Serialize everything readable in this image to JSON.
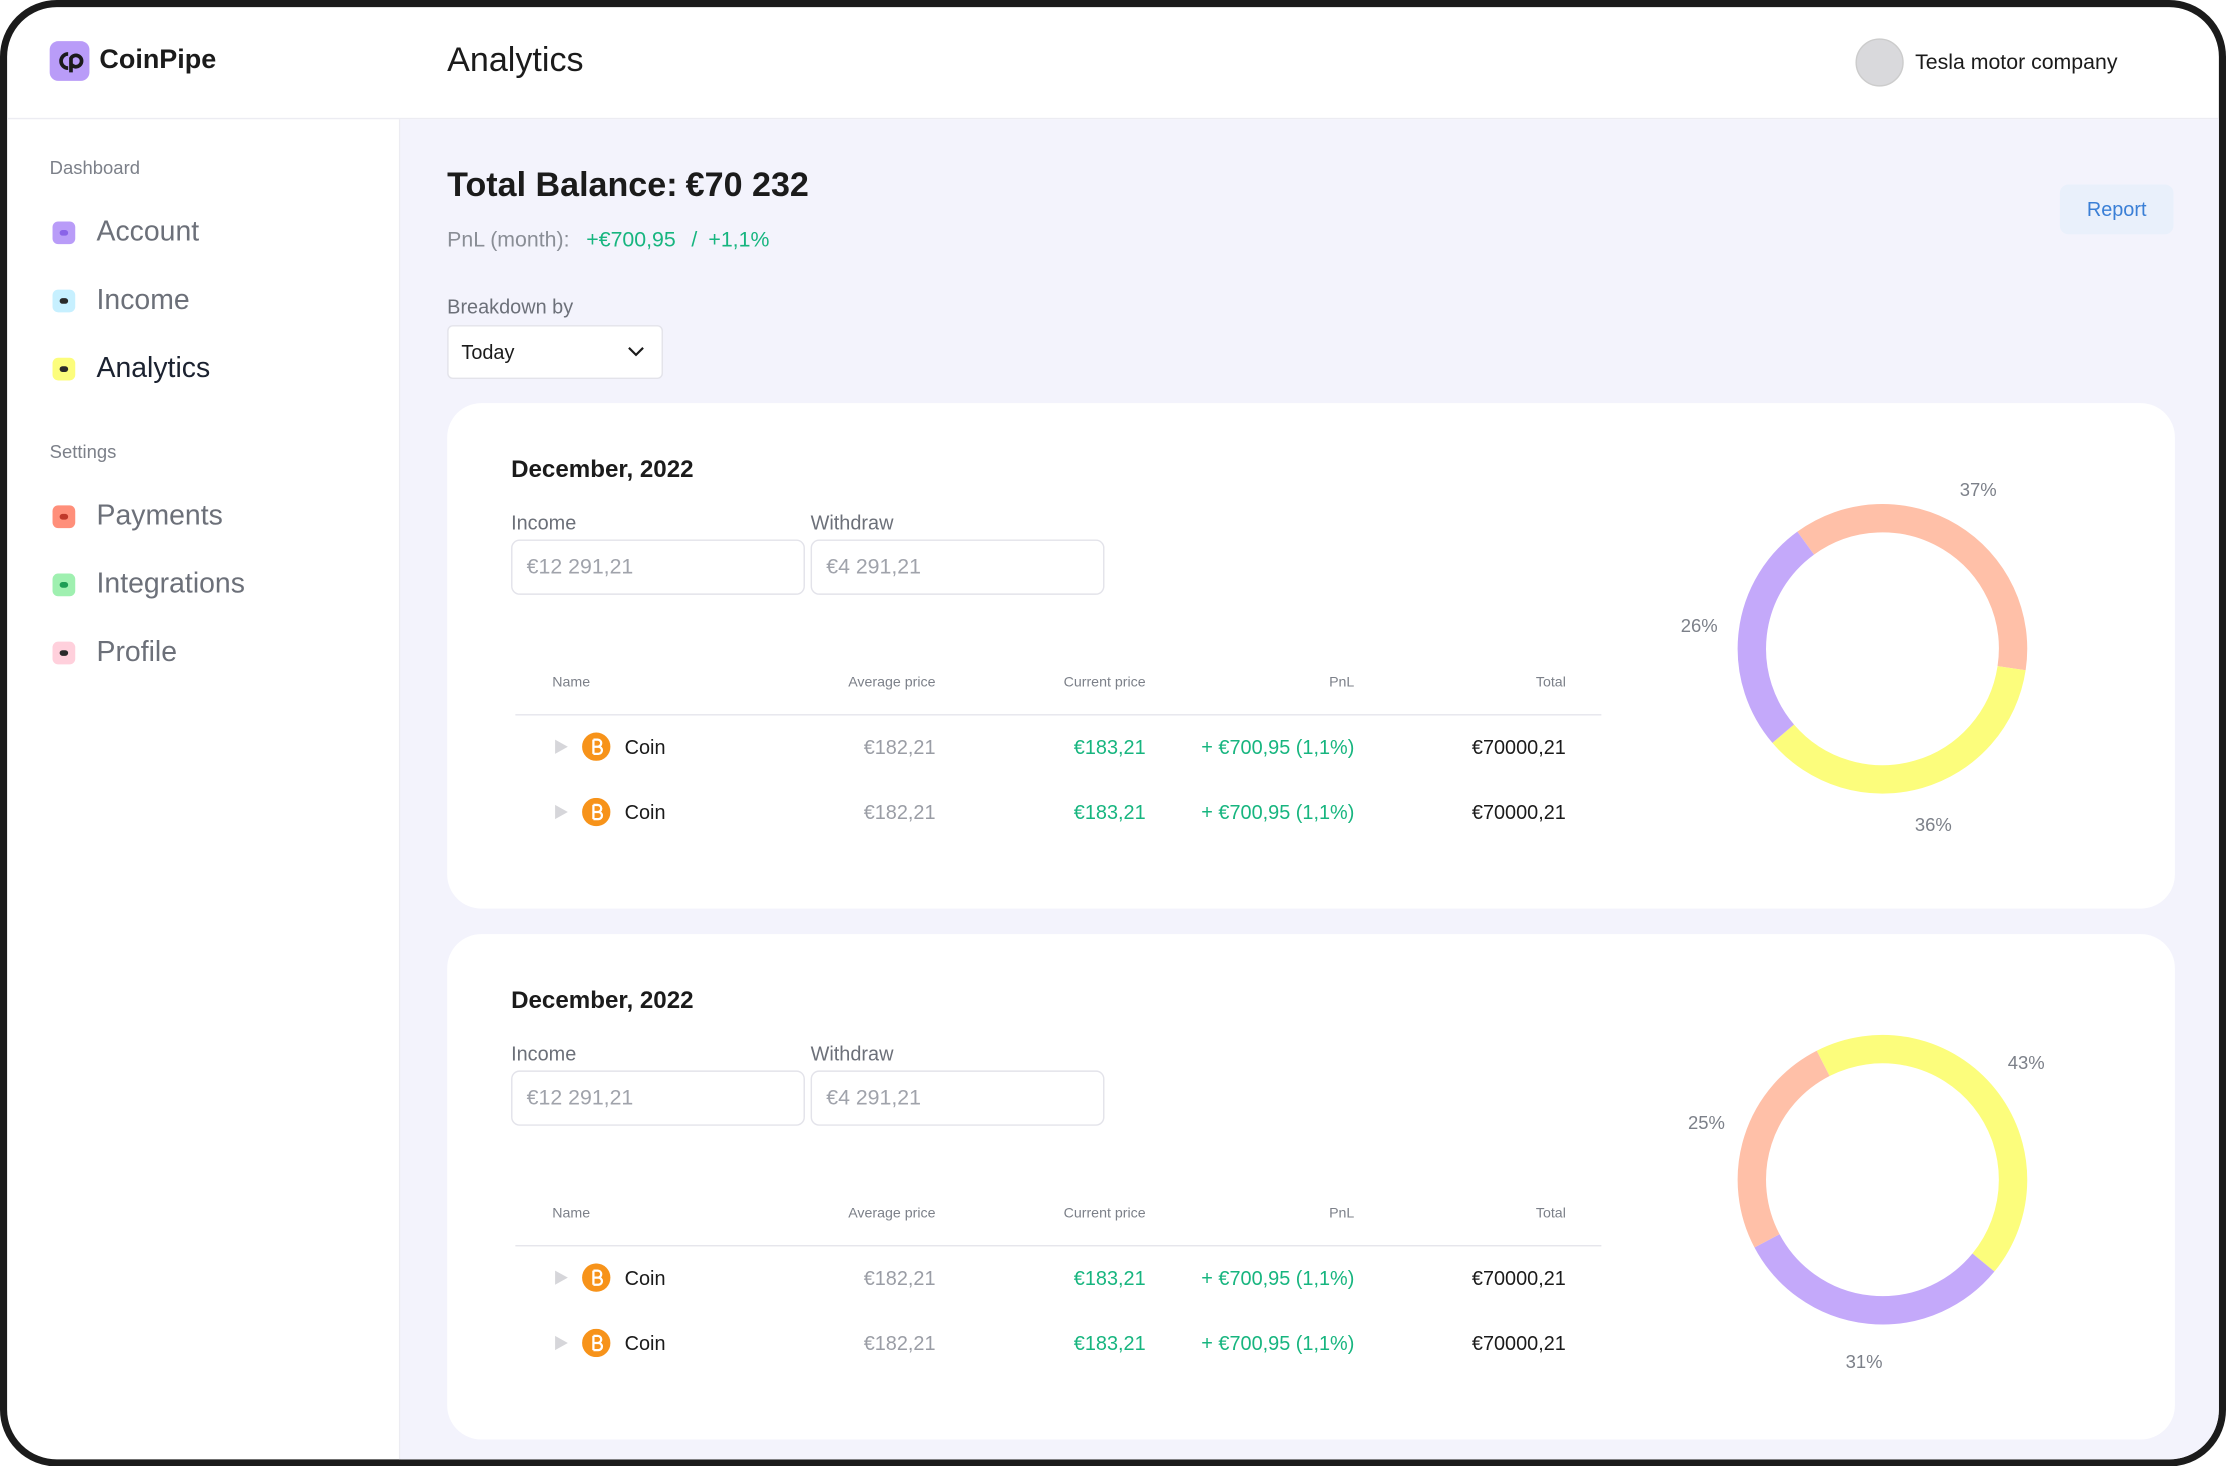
{
  "header": {
    "logo": "CoinPipe",
    "title": "Analytics",
    "user": "Tesla motor company"
  },
  "sidebar": {
    "sections": [
      {
        "title": "Dashboard",
        "items": [
          "Account",
          "Income",
          "Analytics"
        ]
      },
      {
        "title": "Settings",
        "items": [
          "Payments",
          "Integrations",
          "Profile"
        ]
      }
    ]
  },
  "balance": {
    "label": "Total Balance:",
    "amount": "€70 232",
    "pnl_label": "PnL (month):",
    "pnl_value": "+€700,95",
    "separator": "/",
    "pnl_percent": "+1,1%",
    "report": "Report"
  },
  "breakdown": {
    "label": "Breakdown by",
    "selected": "Today"
  },
  "cards": [
    {
      "title": "December, 2022",
      "income_label": "Income",
      "income_value": "€12 291,21",
      "withdraw_label": "Withdraw",
      "withdraw_value": "€4 291,21",
      "table": {
        "columns": [
          "Name",
          "Average price",
          "Current price",
          "PnL",
          "Total"
        ],
        "rows": [
          [
            "Coin",
            "€182,21",
            "€183,21",
            "+ €700,95 (1,1%)",
            "€70000,21"
          ],
          [
            "Coin",
            "€182,21",
            "€183,21",
            "+ €700,95 (1,1%)",
            "€70000,21"
          ]
        ]
      }
    },
    {
      "title": "December, 2022",
      "income_label": "Income",
      "income_value": "€12 291,21",
      "withdraw_label": "Withdraw",
      "withdraw_value": "€4 291,21",
      "table": {
        "columns": [
          "Name",
          "Average price",
          "Current price",
          "PnL",
          "Total"
        ],
        "rows": [
          [
            "Coin",
            "€182,21",
            "€183,21",
            "+ €700,95 (1,1%)",
            "€70000,21"
          ],
          [
            "Coin",
            "€182,21",
            "€183,21",
            "+ €700,95 (1,1%)",
            "€70000,21"
          ]
        ]
      }
    }
  ],
  "chart_data": [
    {
      "type": "donut",
      "values": [
        37,
        36,
        26
      ],
      "value_labels": [
        "37%",
        "36%",
        "26%"
      ],
      "colors": [
        "#ffc0a8",
        "#fcfd7c",
        "#c4a9fa"
      ]
    },
    {
      "type": "donut",
      "values": [
        43,
        31,
        25
      ],
      "value_labels": [
        "43%",
        "31%",
        "25%"
      ],
      "colors": [
        "#fcfd7c",
        "#c4a9fa",
        "#ffc0a8"
      ]
    }
  ]
}
